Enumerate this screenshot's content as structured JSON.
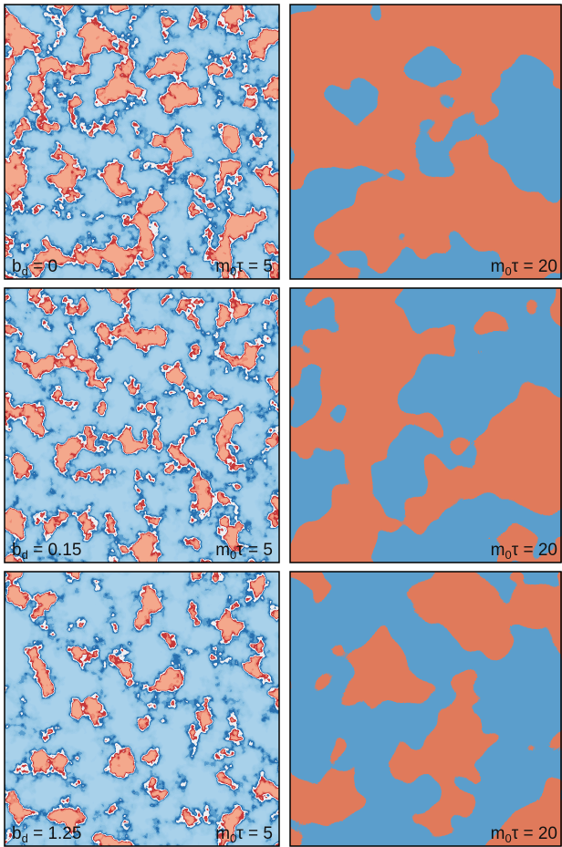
{
  "rows": [
    {
      "left": {
        "b": {
          "base": "b",
          "sub": "d",
          "rest": " = 0"
        },
        "m": {
          "base": "m",
          "sub": "0",
          "rest": "τ = 5"
        }
      },
      "right": {
        "m": {
          "base": "m",
          "sub": "0",
          "rest": "τ = 20"
        }
      }
    },
    {
      "left": {
        "b": {
          "base": "b",
          "sub": "d",
          "rest": " = 0.15"
        },
        "m": {
          "base": "m",
          "sub": "0",
          "rest": "τ = 5"
        }
      },
      "right": {
        "m": {
          "base": "m",
          "sub": "0",
          "rest": "τ = 20"
        }
      }
    },
    {
      "left": {
        "b": {
          "base": "b",
          "sub": "d",
          "rest": " = 1.25"
        },
        "m": {
          "base": "m",
          "sub": "0",
          "rest": "τ = 5"
        }
      },
      "right": {
        "m": {
          "base": "m",
          "sub": "0",
          "rest": "τ = 20"
        }
      }
    }
  ]
}
